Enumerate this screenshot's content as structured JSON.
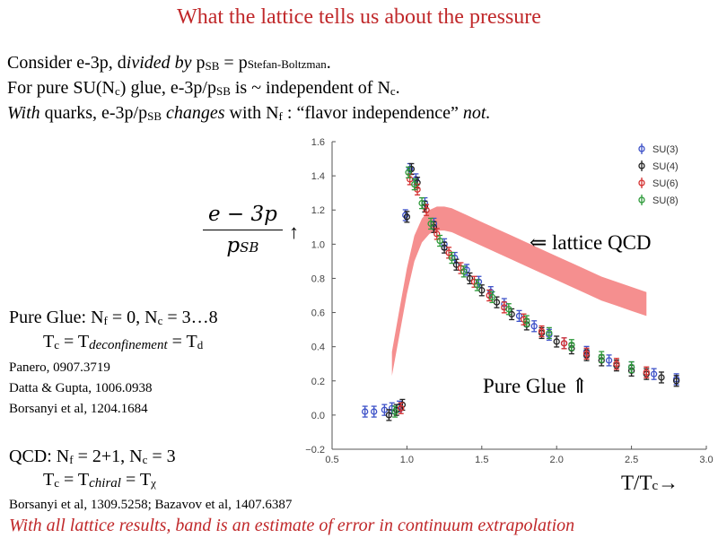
{
  "slide": {
    "title": "What the lattice tells us about the pressure",
    "line1": {
      "a": "Consider e-3p, d",
      "b": "ivided by",
      "c": " p",
      "d": "SB",
      "e": " = p",
      "f": "Stefan-Boltzman",
      "g": "."
    },
    "line2": {
      "a": "For pure SU(N",
      "b": "c",
      "c": ") glue, e-3p/p",
      "d": "SB",
      "e": " is ~ independent of N",
      "f": "c",
      "g": "."
    },
    "line3": {
      "a": "With",
      "b": " quarks, e-3p/p",
      "c": "SB",
      "d": " changes",
      "e": " with N",
      "f": "f",
      "g": " : “flavor independence” ",
      "h": "not."
    },
    "formula_num": "e − 3p",
    "formula_den_p": "p",
    "formula_den_sub": "SB",
    "formula_arrow": "↑",
    "lattice_label": "⇐ lattice QCD",
    "pure_glue_arrow_label": "Pure Glue ⇑",
    "pure_glue": {
      "a": "Pure Glue: N",
      "b": "f",
      "c": " = 0, N",
      "d": "c",
      "e": " = 3…8"
    },
    "tc_line": {
      "a": "T",
      "b": "c",
      "c": " = T",
      "d": "deconfinement",
      "e": " = T",
      "f": "d"
    },
    "refs": [
      "Panero, 0907.3719",
      "Datta & Gupta, 1006.0938",
      "Borsanyi et al, 1204.1684"
    ],
    "qcd": {
      "a": "QCD: N",
      "b": "f",
      "c": " = 2+1, N",
      "d": "c",
      "e": " = 3"
    },
    "tc_chiral": {
      "a": "T",
      "b": "c",
      "c": " = T",
      "d": "chiral",
      "e": " = T",
      "f": "χ"
    },
    "xaxis_label": {
      "a": "T/T",
      "b": "c",
      "c": "→"
    },
    "refs2": "Borsanyi et al, 1309.5258; Bazavov et al, 1407.6387",
    "footer": "With all lattice results, band is an estimate of error in continuum extrapolation",
    "colors": {
      "title": "#c0282a",
      "footer": "#c0282a",
      "band": "#f26a6a"
    }
  },
  "chart_data": {
    "type": "scatter",
    "xlim": [
      0.5,
      3.0
    ],
    "ylim": [
      -0.2,
      1.6
    ],
    "x_ticks": [
      "0.5",
      "1.0",
      "1.5",
      "2.0",
      "2.5",
      "3.0"
    ],
    "y_ticks": [
      "−0.2",
      "0.0",
      "0.2",
      "0.4",
      "0.6",
      "0.8",
      "1.0",
      "1.2",
      "1.4",
      "1.6"
    ],
    "legend_position": "top-right",
    "series": [
      {
        "name": "SU(3)",
        "color": "#3e52c8",
        "points": [
          [
            0.72,
            0.02
          ],
          [
            0.78,
            0.02
          ],
          [
            0.85,
            0.03
          ],
          [
            0.9,
            0.04
          ],
          [
            0.95,
            0.05
          ],
          [
            0.99,
            1.17
          ],
          [
            1.02,
            1.44
          ],
          [
            1.06,
            1.38
          ],
          [
            1.12,
            1.24
          ],
          [
            1.18,
            1.12
          ],
          [
            1.25,
            1.0
          ],
          [
            1.32,
            0.92
          ],
          [
            1.4,
            0.85
          ],
          [
            1.48,
            0.78
          ],
          [
            1.56,
            0.72
          ],
          [
            1.65,
            0.65
          ],
          [
            1.75,
            0.58
          ],
          [
            1.85,
            0.52
          ],
          [
            1.95,
            0.47
          ],
          [
            2.05,
            0.42
          ],
          [
            2.2,
            0.37
          ],
          [
            2.35,
            0.32
          ],
          [
            2.5,
            0.28
          ],
          [
            2.65,
            0.24
          ],
          [
            2.8,
            0.21
          ]
        ]
      },
      {
        "name": "SU(4)",
        "color": "#222222",
        "points": [
          [
            0.88,
            0.0
          ],
          [
            0.93,
            0.03
          ],
          [
            0.97,
            0.06
          ],
          [
            1.0,
            1.16
          ],
          [
            1.03,
            1.44
          ],
          [
            1.07,
            1.36
          ],
          [
            1.12,
            1.22
          ],
          [
            1.18,
            1.1
          ],
          [
            1.25,
            0.98
          ],
          [
            1.33,
            0.88
          ],
          [
            1.42,
            0.8
          ],
          [
            1.5,
            0.73
          ],
          [
            1.6,
            0.66
          ],
          [
            1.7,
            0.59
          ],
          [
            1.8,
            0.53
          ],
          [
            1.9,
            0.48
          ],
          [
            2.0,
            0.43
          ],
          [
            2.1,
            0.39
          ],
          [
            2.2,
            0.35
          ],
          [
            2.3,
            0.32
          ],
          [
            2.4,
            0.29
          ],
          [
            2.5,
            0.26
          ],
          [
            2.6,
            0.24
          ],
          [
            2.7,
            0.22
          ],
          [
            2.8,
            0.2
          ]
        ]
      },
      {
        "name": "SU(6)",
        "color": "#d43030",
        "points": [
          [
            0.96,
            0.04
          ],
          [
            1.02,
            1.38
          ],
          [
            1.07,
            1.32
          ],
          [
            1.13,
            1.2
          ],
          [
            1.2,
            1.06
          ],
          [
            1.28,
            0.95
          ],
          [
            1.36,
            0.86
          ],
          [
            1.45,
            0.78
          ],
          [
            1.55,
            0.7
          ],
          [
            1.65,
            0.63
          ],
          [
            1.78,
            0.56
          ],
          [
            1.9,
            0.49
          ],
          [
            2.05,
            0.42
          ],
          [
            2.2,
            0.36
          ],
          [
            2.4,
            0.3
          ],
          [
            2.6,
            0.25
          ]
        ]
      },
      {
        "name": "SU(8)",
        "color": "#2e9a3a",
        "points": [
          [
            0.92,
            0.02
          ],
          [
            1.01,
            1.42
          ],
          [
            1.05,
            1.35
          ],
          [
            1.1,
            1.24
          ],
          [
            1.16,
            1.12
          ],
          [
            1.22,
            1.02
          ],
          [
            1.3,
            0.92
          ],
          [
            1.38,
            0.84
          ],
          [
            1.47,
            0.76
          ],
          [
            1.57,
            0.69
          ],
          [
            1.68,
            0.62
          ],
          [
            1.8,
            0.55
          ],
          [
            1.95,
            0.48
          ],
          [
            2.1,
            0.41
          ],
          [
            2.3,
            0.34
          ],
          [
            2.5,
            0.28
          ]
        ]
      }
    ],
    "band": {
      "x": [
        0.9,
        0.95,
        1.0,
        1.05,
        1.1,
        1.15,
        1.2,
        1.25,
        1.3,
        1.4,
        1.5,
        1.6,
        1.7,
        1.8,
        1.9,
        2.0,
        2.1,
        2.2,
        2.3,
        2.4,
        2.5,
        2.6
      ],
      "upper": [
        0.37,
        0.62,
        0.86,
        1.05,
        1.15,
        1.2,
        1.22,
        1.22,
        1.21,
        1.17,
        1.13,
        1.09,
        1.05,
        1.01,
        0.97,
        0.93,
        0.89,
        0.85,
        0.81,
        0.78,
        0.75,
        0.72
      ],
      "lower": [
        0.23,
        0.47,
        0.71,
        0.9,
        1.01,
        1.06,
        1.08,
        1.08,
        1.07,
        1.03,
        0.99,
        0.95,
        0.91,
        0.87,
        0.83,
        0.79,
        0.75,
        0.71,
        0.67,
        0.64,
        0.61,
        0.58
      ]
    }
  }
}
